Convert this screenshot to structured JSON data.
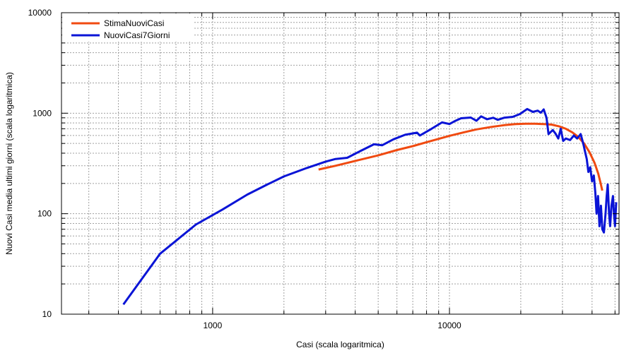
{
  "chart_data": {
    "type": "line",
    "title": "",
    "xlabel": "Casi (scala logaritmica)",
    "ylabel": "Nuovi Casi media ultimi giorni (scala logaritmica)",
    "xscale": "log",
    "yscale": "log",
    "xlim": [
      230,
      52000
    ],
    "ylim": [
      10,
      10000
    ],
    "grid": true,
    "legend_position": "top-left",
    "x_ticks": [
      {
        "value": 1000,
        "label": "1000"
      },
      {
        "value": 10000,
        "label": "10000"
      }
    ],
    "y_ticks": [
      {
        "value": 10,
        "label": "10"
      },
      {
        "value": 100,
        "label": "100"
      },
      {
        "value": 1000,
        "label": "1000"
      },
      {
        "value": 10000,
        "label": "10000"
      }
    ],
    "series": [
      {
        "name": "StimaNuoviCasi",
        "color": "#f04a10",
        "points": [
          [
            2800,
            275
          ],
          [
            3300,
            300
          ],
          [
            4000,
            335
          ],
          [
            5000,
            380
          ],
          [
            6000,
            430
          ],
          [
            7000,
            470
          ],
          [
            8000,
            515
          ],
          [
            9000,
            555
          ],
          [
            10000,
            595
          ],
          [
            11500,
            645
          ],
          [
            13000,
            690
          ],
          [
            15000,
            730
          ],
          [
            17000,
            760
          ],
          [
            19000,
            780
          ],
          [
            21000,
            785
          ],
          [
            23000,
            785
          ],
          [
            25000,
            780
          ],
          [
            27000,
            770
          ],
          [
            29000,
            740
          ],
          [
            31000,
            700
          ],
          [
            33000,
            645
          ],
          [
            35000,
            580
          ],
          [
            37000,
            500
          ],
          [
            39000,
            410
          ],
          [
            41000,
            320
          ],
          [
            42500,
            250
          ],
          [
            43500,
            200
          ],
          [
            44200,
            170
          ]
        ]
      },
      {
        "name": "NuoviCasi7Giorni",
        "color": "#0a14d6",
        "points": [
          [
            420,
            12.5
          ],
          [
            600,
            40
          ],
          [
            850,
            78
          ],
          [
            1100,
            110
          ],
          [
            1400,
            155
          ],
          [
            1700,
            195
          ],
          [
            2000,
            235
          ],
          [
            2500,
            285
          ],
          [
            3000,
            330
          ],
          [
            3300,
            350
          ],
          [
            3700,
            360
          ],
          [
            4200,
            420
          ],
          [
            4800,
            490
          ],
          [
            5200,
            480
          ],
          [
            5800,
            550
          ],
          [
            6500,
            610
          ],
          [
            7300,
            640
          ],
          [
            7500,
            600
          ],
          [
            8400,
            700
          ],
          [
            9300,
            810
          ],
          [
            10000,
            780
          ],
          [
            10600,
            840
          ],
          [
            11200,
            890
          ],
          [
            12300,
            905
          ],
          [
            13000,
            840
          ],
          [
            13600,
            930
          ],
          [
            14400,
            870
          ],
          [
            15300,
            900
          ],
          [
            16000,
            860
          ],
          [
            17000,
            900
          ],
          [
            18500,
            920
          ],
          [
            19800,
            980
          ],
          [
            21300,
            1100
          ],
          [
            22500,
            1030
          ],
          [
            23600,
            1060
          ],
          [
            24300,
            1010
          ],
          [
            25000,
            1090
          ],
          [
            25700,
            900
          ],
          [
            26200,
            620
          ],
          [
            27300,
            680
          ],
          [
            28000,
            630
          ],
          [
            28800,
            560
          ],
          [
            29500,
            700
          ],
          [
            30200,
            530
          ],
          [
            31000,
            560
          ],
          [
            32300,
            540
          ],
          [
            33500,
            600
          ],
          [
            34600,
            560
          ],
          [
            35800,
            620
          ],
          [
            36700,
            500
          ],
          [
            37500,
            400
          ],
          [
            38000,
            350
          ],
          [
            38600,
            260
          ],
          [
            39300,
            290
          ],
          [
            40000,
            210
          ],
          [
            40700,
            240
          ],
          [
            41300,
            160
          ],
          [
            41800,
            100
          ],
          [
            42400,
            150
          ],
          [
            43000,
            75
          ],
          [
            43600,
            120
          ],
          [
            44200,
            70
          ],
          [
            44900,
            65
          ],
          [
            45600,
            100
          ],
          [
            46100,
            150
          ],
          [
            46600,
            195
          ],
          [
            47200,
            100
          ],
          [
            47700,
            75
          ],
          [
            48300,
            120
          ],
          [
            49000,
            150
          ],
          [
            49500,
            100
          ],
          [
            50000,
            75
          ],
          [
            50600,
            130
          ]
        ]
      }
    ]
  }
}
